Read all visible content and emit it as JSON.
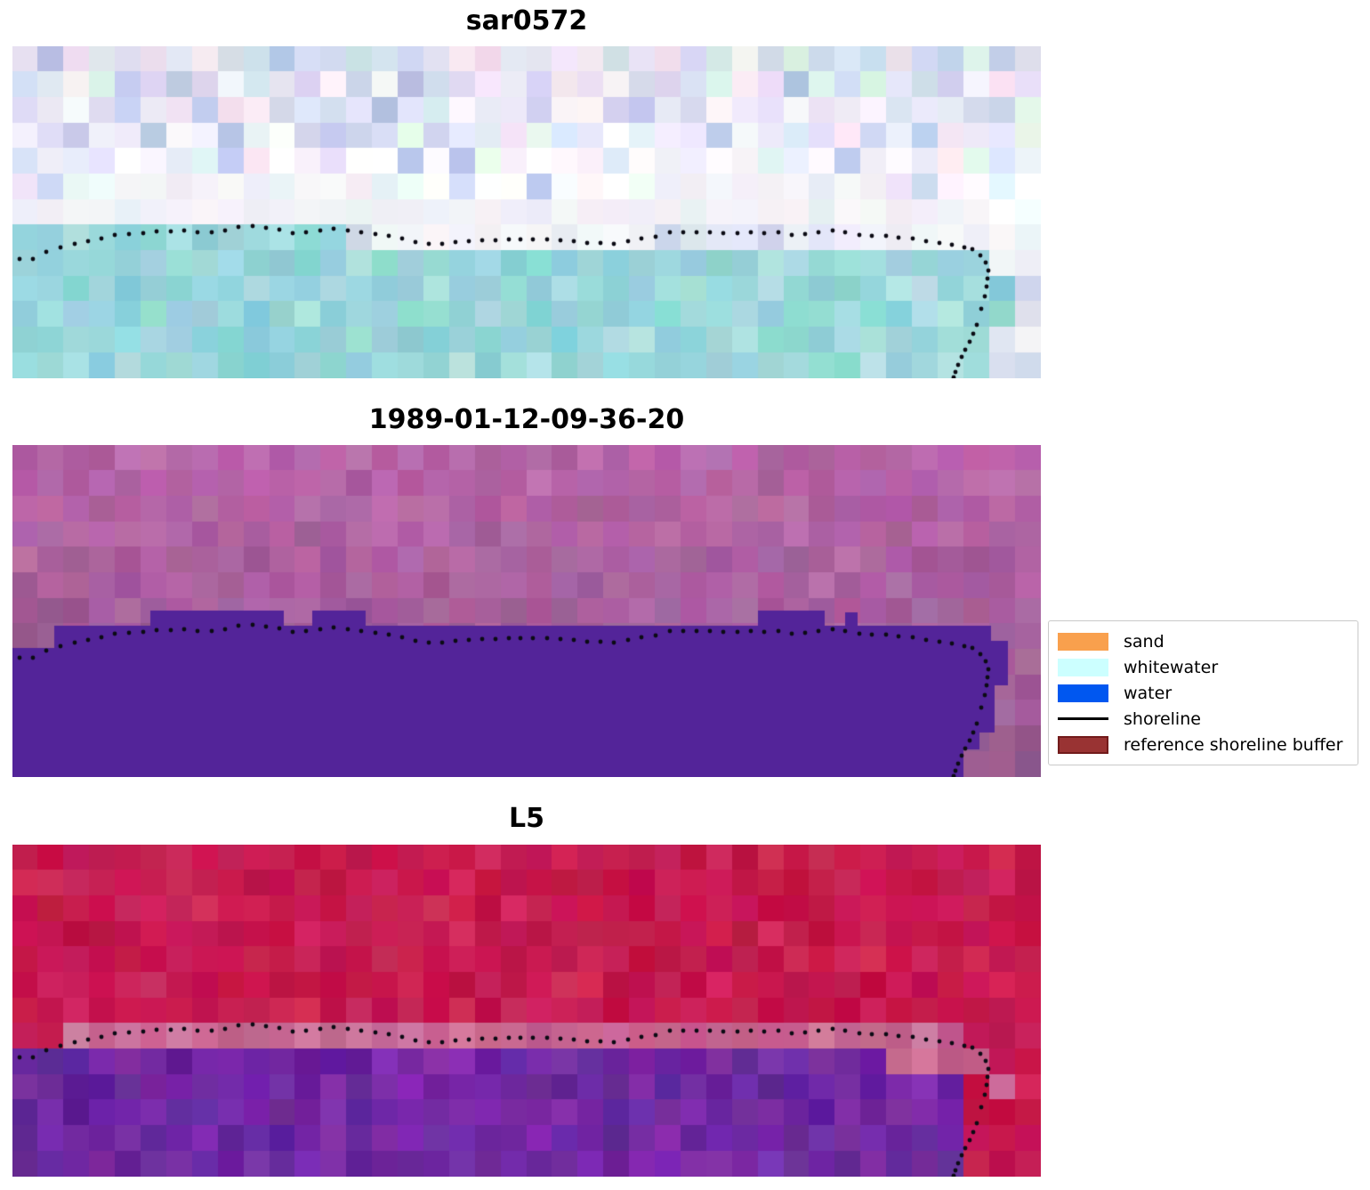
{
  "chart_data": {
    "type": "image-panels",
    "description": "Shoreline detection figure: three co-registered coastal image panels with a dotted detected shoreline overlay and a classification legend",
    "panels": [
      {
        "title": "sar0572",
        "kind": "sar",
        "seed": 11,
        "palettes": {
          "land": [
            "#c7cde9",
            "#d6d4ee",
            "#e2def2",
            "#eee9f5",
            "#f4eef7",
            "#dee4f1",
            "#d2ddf0",
            "#e7def0",
            "#f0dcec",
            "#d9eee4",
            "#cfe0ea",
            "#b7c3e3",
            "#aebade",
            "#f6eff3"
          ],
          "band": [
            "#f3f5f9",
            "#eef1f7",
            "#f7f6fa",
            "#e9eef5",
            "#f2eff6"
          ],
          "water": [
            "#8ed3da",
            "#9cd8de",
            "#aadde2",
            "#b6e2e5",
            "#8fd8cf",
            "#a2dcd8",
            "#93cfd9",
            "#86ced6",
            "#9bd2dd"
          ],
          "pale": [
            "#dfe3f1",
            "#e9ebf6",
            "#d3d9ec",
            "#f1f2f8",
            "#cdd4ea"
          ]
        },
        "water_polygon": [
          [
            0,
            373
          ],
          [
            0,
            246
          ],
          [
            60,
            236
          ],
          [
            100,
            223
          ],
          [
            150,
            217
          ],
          [
            200,
            214
          ],
          [
            250,
            209
          ],
          [
            300,
            211
          ],
          [
            350,
            212
          ],
          [
            400,
            216
          ],
          [
            450,
            223
          ],
          [
            500,
            227
          ],
          [
            550,
            225
          ],
          [
            600,
            224
          ],
          [
            650,
            228
          ],
          [
            700,
            223
          ],
          [
            750,
            216
          ],
          [
            800,
            217
          ],
          [
            850,
            216
          ],
          [
            900,
            217
          ],
          [
            950,
            219
          ],
          [
            1000,
            222
          ],
          [
            1040,
            228
          ],
          [
            1075,
            233
          ],
          [
            1105,
            242
          ],
          [
            1120,
            250
          ],
          [
            1124,
            265
          ],
          [
            1121,
            290
          ],
          [
            1113,
            315
          ],
          [
            1104,
            335
          ],
          [
            1097,
            355
          ],
          [
            1092,
            373
          ]
        ]
      },
      {
        "title": "1989-01-12-09-36-20",
        "kind": "classified",
        "seed": 27,
        "palettes": {
          "land": [
            "#a85f9d",
            "#ad64a1",
            "#a25a98",
            "#9b5893",
            "#b06aa4",
            "#a666a0",
            "#aa5f9e"
          ]
        },
        "water_color": "#532499",
        "water_polygon": [
          [
            0,
            373
          ],
          [
            0,
            228
          ],
          [
            47,
            228
          ],
          [
            47,
            203
          ],
          [
            155,
            203
          ],
          [
            155,
            186
          ],
          [
            305,
            186
          ],
          [
            305,
            203
          ],
          [
            337,
            203
          ],
          [
            337,
            186
          ],
          [
            397,
            186
          ],
          [
            397,
            203
          ],
          [
            838,
            203
          ],
          [
            838,
            186
          ],
          [
            913,
            186
          ],
          [
            913,
            203
          ],
          [
            936,
            203
          ],
          [
            936,
            188
          ],
          [
            950,
            188
          ],
          [
            950,
            203
          ],
          [
            1100,
            203
          ],
          [
            1100,
            220
          ],
          [
            1119,
            220
          ],
          [
            1119,
            270
          ],
          [
            1104,
            270
          ],
          [
            1104,
            323
          ],
          [
            1087,
            323
          ],
          [
            1087,
            342
          ],
          [
            1069,
            342
          ],
          [
            1069,
            373
          ]
        ]
      },
      {
        "title": "L5",
        "kind": "l5",
        "seed": 43,
        "palettes": {
          "red": [
            "#c4134b",
            "#ca1c52",
            "#bf1747",
            "#d02a5b",
            "#c81850",
            "#cc2458",
            "#c00f44",
            "#c51d55"
          ],
          "pink": [
            "#c7618e",
            "#cb6b97",
            "#c05a87",
            "#d07aa0",
            "#c36590"
          ],
          "water": [
            "#6f28a2",
            "#7a2fa8",
            "#652398",
            "#822fb0",
            "#5f1f96",
            "#7429a5",
            "#6c2aa0"
          ]
        },
        "water_polygon": [
          [
            0,
            373
          ],
          [
            0,
            262
          ],
          [
            8,
            268
          ],
          [
            60,
            252
          ],
          [
            100,
            244
          ],
          [
            150,
            238
          ],
          [
            200,
            236
          ],
          [
            250,
            234
          ],
          [
            300,
            236
          ],
          [
            350,
            235
          ],
          [
            400,
            239
          ],
          [
            450,
            246
          ],
          [
            500,
            250
          ],
          [
            550,
            248
          ],
          [
            600,
            247
          ],
          [
            650,
            251
          ],
          [
            700,
            246
          ],
          [
            750,
            239
          ],
          [
            800,
            240
          ],
          [
            850,
            240
          ],
          [
            900,
            241
          ],
          [
            950,
            242
          ],
          [
            1000,
            245
          ],
          [
            1040,
            251
          ],
          [
            1064,
            257
          ],
          [
            1080,
            266
          ],
          [
            1087,
            280
          ],
          [
            1083,
            303
          ],
          [
            1075,
            325
          ],
          [
            1066,
            343
          ],
          [
            1056,
            362
          ],
          [
            1052,
            373
          ]
        ]
      }
    ],
    "shoreline": {
      "color": "#0b0b14",
      "dot_radius": 2.4,
      "points": [
        [
          8,
          239
        ],
        [
          23,
          239
        ],
        [
          38,
          231
        ],
        [
          54,
          226
        ],
        [
          70,
          222
        ],
        [
          85,
          219
        ],
        [
          100,
          216
        ],
        [
          115,
          212
        ],
        [
          131,
          211
        ],
        [
          147,
          210
        ],
        [
          162,
          208
        ],
        [
          178,
          208
        ],
        [
          193,
          207
        ],
        [
          208,
          209
        ],
        [
          224,
          209
        ],
        [
          239,
          207
        ],
        [
          254,
          203
        ],
        [
          270,
          202
        ],
        [
          285,
          204
        ],
        [
          300,
          206
        ],
        [
          315,
          210
        ],
        [
          330,
          209
        ],
        [
          346,
          207
        ],
        [
          361,
          205
        ],
        [
          377,
          207
        ],
        [
          392,
          209
        ],
        [
          408,
          211
        ],
        [
          423,
          213
        ],
        [
          438,
          216
        ],
        [
          453,
          220
        ],
        [
          468,
          222
        ],
        [
          483,
          222
        ],
        [
          498,
          220
        ],
        [
          513,
          219
        ],
        [
          528,
          218
        ],
        [
          543,
          218
        ],
        [
          558,
          217
        ],
        [
          571,
          217
        ],
        [
          585,
          217
        ],
        [
          601,
          217
        ],
        [
          616,
          218
        ],
        [
          631,
          219
        ],
        [
          646,
          221
        ],
        [
          661,
          221
        ],
        [
          676,
          222
        ],
        [
          692,
          219
        ],
        [
          707,
          216
        ],
        [
          723,
          214
        ],
        [
          739,
          209
        ],
        [
          754,
          209
        ],
        [
          769,
          209
        ],
        [
          784,
          209
        ],
        [
          799,
          210
        ],
        [
          815,
          210
        ],
        [
          830,
          209
        ],
        [
          845,
          210
        ],
        [
          861,
          209
        ],
        [
          876,
          212
        ],
        [
          891,
          211
        ],
        [
          906,
          209
        ],
        [
          922,
          207
        ],
        [
          936,
          209
        ],
        [
          952,
          212
        ],
        [
          966,
          213
        ],
        [
          982,
          213
        ],
        [
          996,
          215
        ],
        [
          1012,
          216
        ],
        [
          1027,
          219
        ],
        [
          1042,
          221
        ],
        [
          1056,
          223
        ],
        [
          1070,
          226
        ],
        [
          1079,
          228
        ],
        [
          1088,
          235
        ],
        [
          1094,
          243
        ],
        [
          1097,
          252
        ],
        [
          1096,
          261
        ],
        [
          1095,
          270
        ],
        [
          1093,
          281
        ],
        [
          1089,
          295
        ],
        [
          1084,
          313
        ],
        [
          1080,
          323
        ],
        [
          1076,
          332
        ],
        [
          1071,
          341
        ],
        [
          1067,
          349
        ],
        [
          1063,
          358
        ],
        [
          1060,
          366
        ],
        [
          1058,
          372
        ]
      ]
    },
    "legend": {
      "border_color": "#c9c9c9",
      "items": [
        {
          "label": "sand",
          "type": "patch",
          "color": "#f9a04d"
        },
        {
          "label": "whitewater",
          "type": "patch",
          "color": "#ccffff"
        },
        {
          "label": "water",
          "type": "patch",
          "color": "#0057f0"
        },
        {
          "label": "shoreline",
          "type": "line",
          "color": "#000000"
        },
        {
          "label": "reference shoreline buffer",
          "type": "patch",
          "color": "#993333",
          "edge": "#721b1b"
        }
      ]
    }
  }
}
